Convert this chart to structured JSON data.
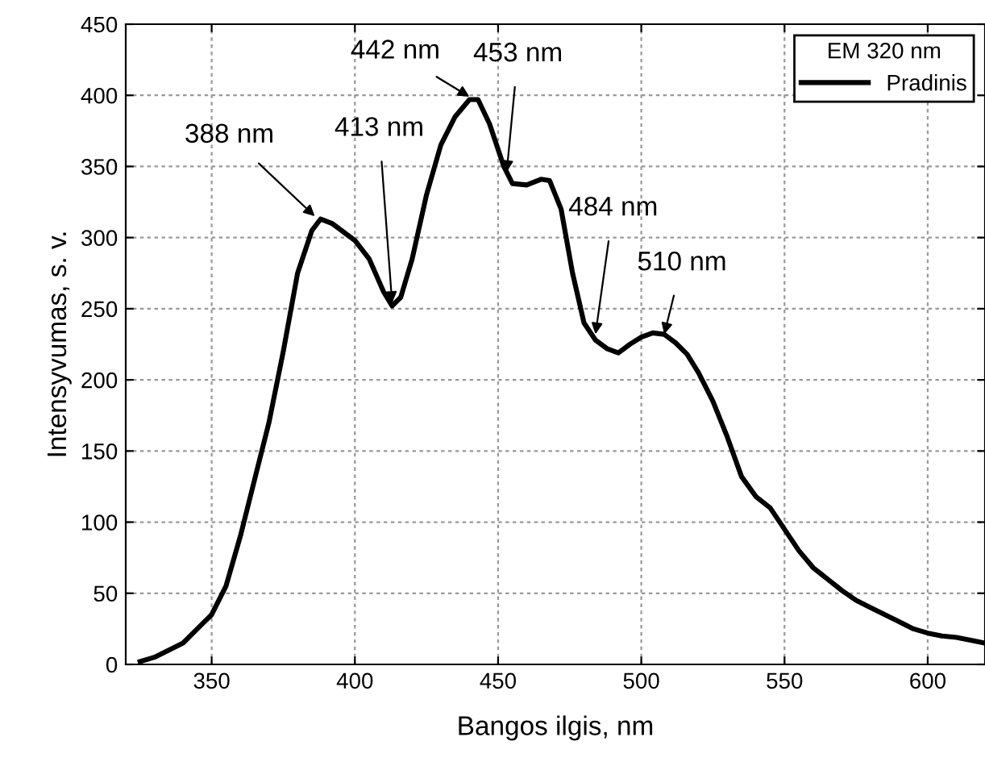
{
  "chart_data": {
    "type": "line",
    "xlabel": "Bangos ilgis, nm",
    "ylabel": "Intensyvumas, s. v.",
    "legend_title": "EM 320 nm",
    "xlim": [
      320,
      620
    ],
    "ylim": [
      0,
      450
    ],
    "xticks": [
      350,
      400,
      450,
      500,
      550,
      600
    ],
    "yticks": [
      0,
      50,
      100,
      150,
      200,
      250,
      300,
      350,
      400,
      450
    ],
    "grid": true,
    "legend": "top right",
    "line_style": "solid",
    "marker": "none",
    "x": [
      325,
      330,
      340,
      350,
      355,
      360,
      365,
      370,
      375,
      380,
      385,
      388,
      392,
      400,
      405,
      410,
      413,
      416,
      420,
      425,
      430,
      435,
      440,
      443,
      447,
      452,
      455,
      460,
      465,
      468,
      472,
      476,
      480,
      484,
      488,
      492,
      496,
      500,
      504,
      508,
      512,
      516,
      520,
      525,
      530,
      535,
      540,
      545,
      550,
      555,
      560,
      565,
      570,
      575,
      580,
      585,
      590,
      595,
      600,
      605,
      610,
      615,
      620
    ],
    "series": [
      {
        "name": "Pradinis",
        "color": "#000000",
        "values": [
          2,
          5,
          15,
          35,
          55,
          90,
          130,
          170,
          220,
          275,
          305,
          313,
          310,
          298,
          285,
          262,
          252,
          258,
          285,
          330,
          365,
          385,
          397,
          397,
          380,
          350,
          338,
          337,
          341,
          340,
          320,
          275,
          240,
          228,
          222,
          219,
          225,
          230,
          233,
          232,
          226,
          218,
          205,
          185,
          160,
          132,
          118,
          110,
          95,
          80,
          68,
          60,
          52,
          45,
          40,
          35,
          30,
          25,
          22,
          20,
          19,
          17,
          15
        ]
      }
    ],
    "annotations": [
      {
        "text": "388 nm",
        "x": 386,
        "y": 315
      },
      {
        "text": "413 nm",
        "x": 413,
        "y": 254
      },
      {
        "text": "442 nm",
        "x": 440,
        "y": 399
      },
      {
        "text": "453 nm",
        "x": 453,
        "y": 346
      },
      {
        "text": "484 nm",
        "x": 484,
        "y": 232
      },
      {
        "text": "510 nm",
        "x": 508,
        "y": 232
      }
    ]
  }
}
